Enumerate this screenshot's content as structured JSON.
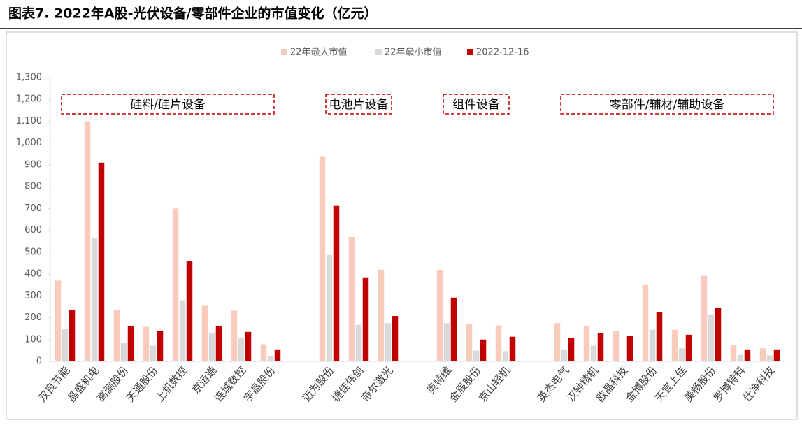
{
  "chart_data": {
    "type": "bar",
    "title": "图表7. 2022年A股-光伏设备/零部件企业的市值变化（亿元）",
    "categories": [
      "双良节能",
      "晶盛机电",
      "高测股份",
      "天通股份",
      "上机数控",
      "京运通",
      "连城数控",
      "宇晶股份",
      null,
      "迈为股份",
      "捷佳伟创",
      "帝尔激光",
      null,
      "奥特维",
      "金辰股份",
      "京山轻机",
      null,
      "英杰电气",
      "汉钟精机",
      "欧晶科技",
      "金博股份",
      "天宜上佳",
      "美畅股份",
      "罗博特科",
      "仕净科技"
    ],
    "series": [
      {
        "name": "22年最大市值",
        "color": "#f8cbbd",
        "values": [
          370,
          1100,
          235,
          158,
          700,
          255,
          232,
          78,
          null,
          940,
          570,
          420,
          null,
          420,
          170,
          165,
          null,
          175,
          162,
          138,
          350,
          145,
          392,
          75,
          60
        ]
      },
      {
        "name": "22年最小市值",
        "color": "#d9d9d9",
        "values": [
          150,
          565,
          85,
          72,
          280,
          128,
          105,
          25,
          null,
          487,
          168,
          175,
          null,
          175,
          50,
          47,
          null,
          55,
          72,
          null,
          145,
          60,
          215,
          30,
          28
        ]
      },
      {
        "name": "2022-12-16",
        "color": "#c00000",
        "values": [
          237,
          910,
          160,
          138,
          460,
          160,
          135,
          55,
          null,
          715,
          385,
          208,
          null,
          292,
          100,
          113,
          null,
          108,
          130,
          118,
          225,
          122,
          245,
          55,
          55
        ]
      }
    ],
    "annotations": [
      "硅料/硅片设备",
      "电池片设备",
      "组件设备",
      "零部件/辅材/辅助设备"
    ],
    "ylim": [
      0,
      1300
    ],
    "yticks": [
      0,
      100,
      200,
      300,
      400,
      500,
      600,
      700,
      800,
      900,
      {
        "value": 1000,
        "label": "1,000"
      },
      {
        "value": 1100,
        "label": "1,100"
      },
      {
        "value": 1200,
        "label": "1,200"
      },
      {
        "value": 1300,
        "label": "1,300"
      }
    ],
    "legend": "top"
  }
}
